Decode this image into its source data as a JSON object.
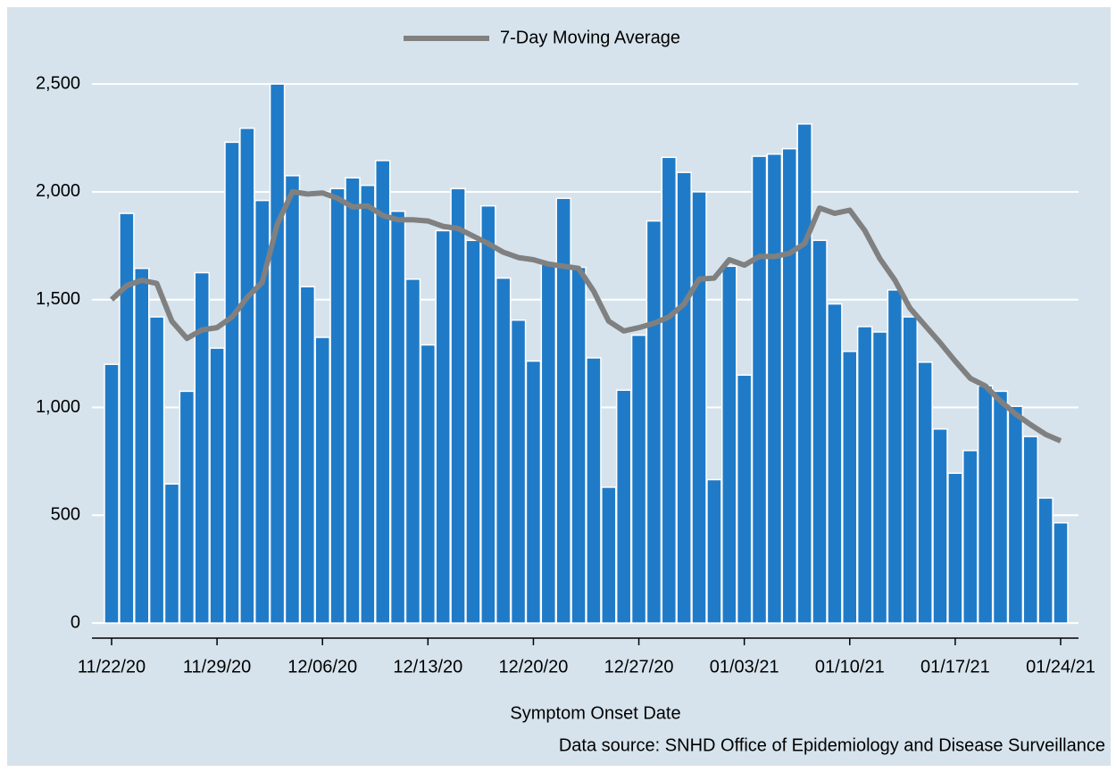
{
  "chart_data": {
    "type": "bar",
    "x_label": "Symptom Onset Date",
    "source": "Data source: SNHD Office of Epidemiology and Disease Surveillance",
    "categories": [
      "11/22/20",
      null,
      null,
      null,
      null,
      null,
      null,
      "11/29/20",
      null,
      null,
      null,
      null,
      null,
      null,
      "12/06/20",
      null,
      null,
      null,
      null,
      null,
      null,
      "12/13/20",
      null,
      null,
      null,
      null,
      null,
      null,
      "12/20/20",
      null,
      null,
      null,
      null,
      null,
      null,
      "12/27/20",
      null,
      null,
      null,
      null,
      null,
      null,
      "01/03/21",
      null,
      null,
      null,
      null,
      null,
      null,
      "01/10/21",
      null,
      null,
      null,
      null,
      null,
      null,
      "01/17/21",
      null,
      null,
      null,
      null,
      null,
      null,
      "01/24/21"
    ],
    "series": [
      {
        "type": "bar",
        "color": "#1f7bc8",
        "values": [
          1200,
          1900,
          1645,
          1420,
          645,
          1075,
          1625,
          1275,
          2230,
          2295,
          1960,
          2500,
          2075,
          1560,
          1325,
          2015,
          2065,
          2030,
          2145,
          1910,
          1595,
          1290,
          1820,
          2015,
          1775,
          1935,
          1600,
          1405,
          1215,
          1665,
          1970,
          1650,
          1230,
          630,
          1080,
          1335,
          1865,
          2160,
          2090,
          2000,
          665,
          1655,
          1150,
          2165,
          2175,
          2200,
          2315,
          1775,
          1480,
          1260,
          1375,
          1350,
          1545,
          1420,
          1210,
          900,
          695,
          800,
          1100,
          1075,
          1005,
          865,
          580,
          465
        ]
      },
      {
        "type": "line",
        "name": "7-Day Moving Average",
        "color": "#808080",
        "values": [
          1500,
          1565,
          1590,
          1575,
          1400,
          1320,
          1360,
          1370,
          1420,
          1510,
          1580,
          1850,
          2000,
          1990,
          1995,
          1970,
          1930,
          1935,
          1890,
          1870,
          1870,
          1865,
          1840,
          1830,
          1795,
          1760,
          1720,
          1695,
          1685,
          1665,
          1655,
          1645,
          1540,
          1400,
          1355,
          1370,
          1390,
          1420,
          1480,
          1595,
          1600,
          1685,
          1660,
          1700,
          1700,
          1715,
          1760,
          1925,
          1900,
          1915,
          1820,
          1690,
          1590,
          1460,
          1380,
          1300,
          1215,
          1135,
          1100,
          1030,
          970,
          920,
          875,
          845
        ]
      }
    ],
    "ylim": [
      -70,
      2600
    ],
    "yticks": [
      0,
      500,
      {
        "value": 1000,
        "label": "1,000"
      },
      {
        "value": 1500,
        "label": "1,500"
      },
      {
        "value": 2000,
        "label": "2,000"
      },
      {
        "value": 2500,
        "label": "2,500"
      }
    ],
    "grid": true
  }
}
